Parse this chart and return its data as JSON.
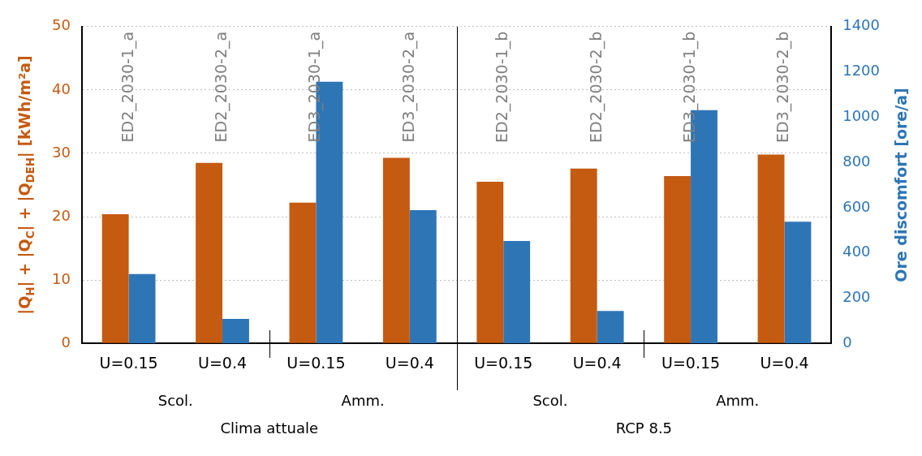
{
  "chart_data": {
    "type": "bar",
    "categories": [
      "U=0.15",
      "U=0.4",
      "U=0.15",
      "U=0.4",
      "U=0.15",
      "U=0.4",
      "U=0.15",
      "U=0.4"
    ],
    "series": [
      {
        "color": "#c55a11",
        "values": [
          20.4,
          28.5,
          22.2,
          29.3,
          25.5,
          27.6,
          26.4,
          29.8
        ]
      },
      {
        "color": "#2e75b6",
        "axis": "y2",
        "values": [
          306,
          108,
          1156,
          589,
          453,
          143,
          1031,
          538
        ]
      }
    ],
    "ylabel": "|Q$_{H}$| + |Q$_{C}$| + |Q$_{DEH}$| [kWh/m²a]",
    "y2label": "Ore discomfort [ore/a]",
    "ylim": [
      0,
      50
    ],
    "yticks": [
      0,
      10,
      20,
      30,
      40,
      50
    ],
    "y2lim": [
      0,
      1400
    ],
    "y2ticks": [
      0,
      200,
      400,
      600,
      800,
      1000,
      1200,
      1400
    ],
    "grid": "y",
    "legend": false,
    "annotations": [
      "ED2_2030-1_a",
      "ED2_2030-2_a",
      "ED3_2030-1_a",
      "ED3_2030-2_a",
      "ED2_2030-1_b",
      "ED2_2030-2_b",
      "ED3_2030-1_b",
      "ED3_2030-2_b",
      "Scol.",
      "Amm.",
      "Scol.",
      "Amm.",
      "Clima attuale",
      "RCP 8.5"
    ]
  }
}
